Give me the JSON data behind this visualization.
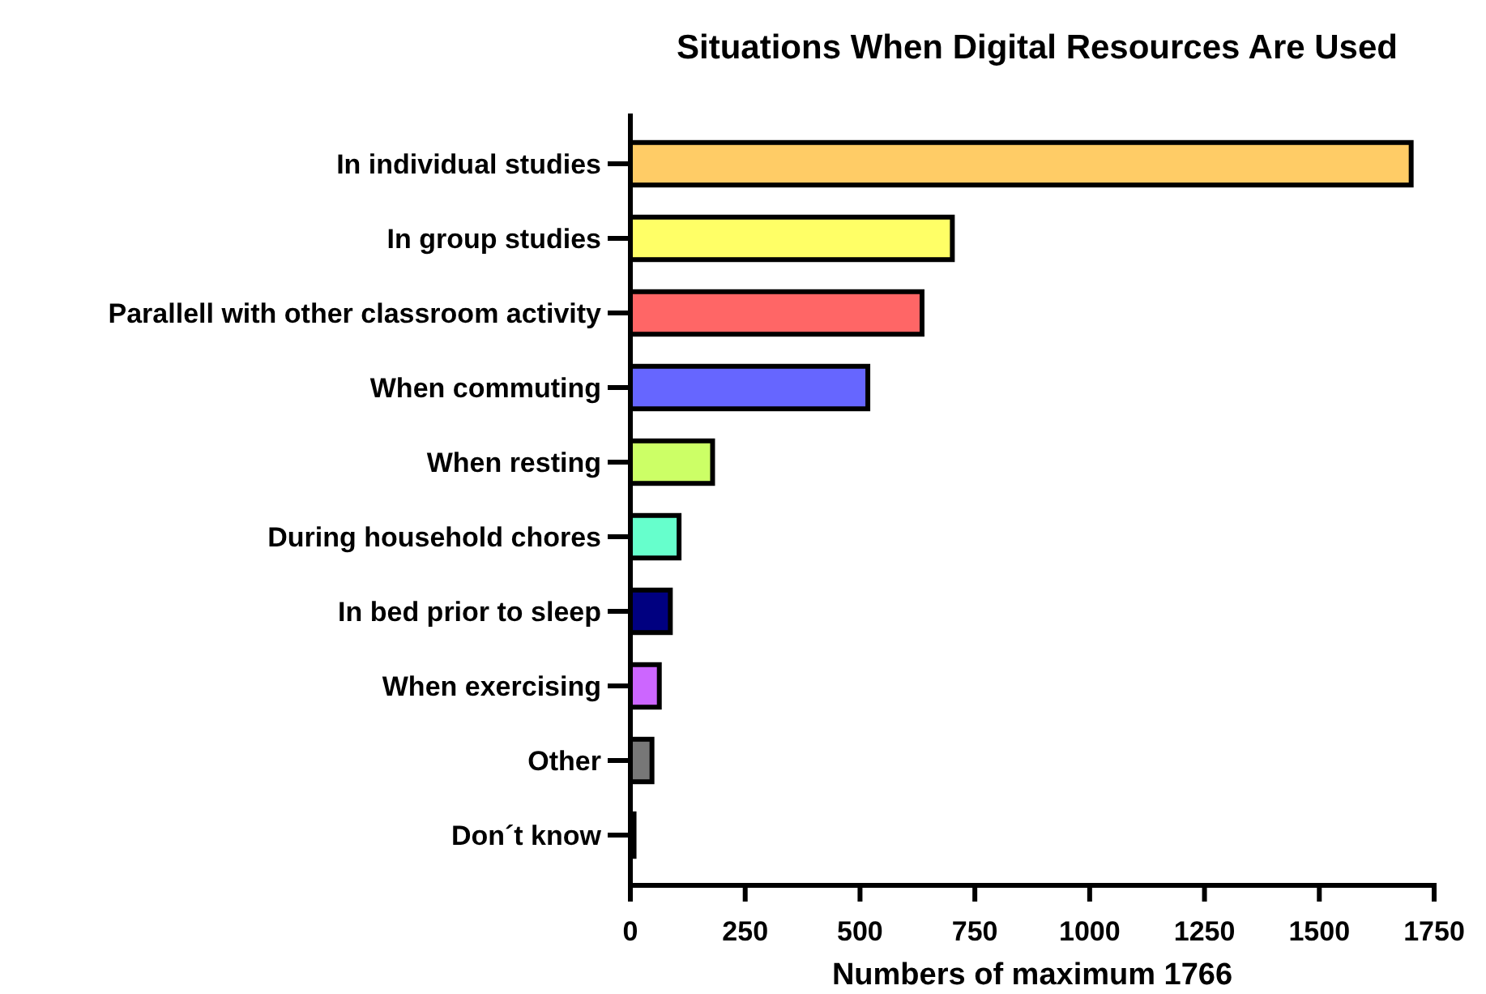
{
  "chart_data": {
    "type": "bar",
    "orientation": "horizontal",
    "title": "Situations When Digital Resources Are Used",
    "xlabel": "Numbers of  maximum 1766",
    "categories": [
      "In individual studies",
      "In group studies",
      "Parallell with other classroom activity",
      "When commuting",
      "When resting",
      "During household chores",
      "In bed prior to sleep",
      "When exercising",
      "Other",
      "Don´t know"
    ],
    "values": [
      1700,
      701,
      635,
      517,
      179,
      106,
      87,
      63,
      47,
      8
    ],
    "colors": [
      "#ffcc66",
      "#ffff66",
      "#ff6666",
      "#6666ff",
      "#ccff66",
      "#66ffcc",
      "#000080",
      "#cc66ff",
      "#777777",
      "#333333"
    ],
    "xlim": [
      0,
      1750
    ],
    "xticks": [
      0,
      250,
      500,
      750,
      1000,
      1250,
      1500,
      1750
    ],
    "grid": false
  }
}
